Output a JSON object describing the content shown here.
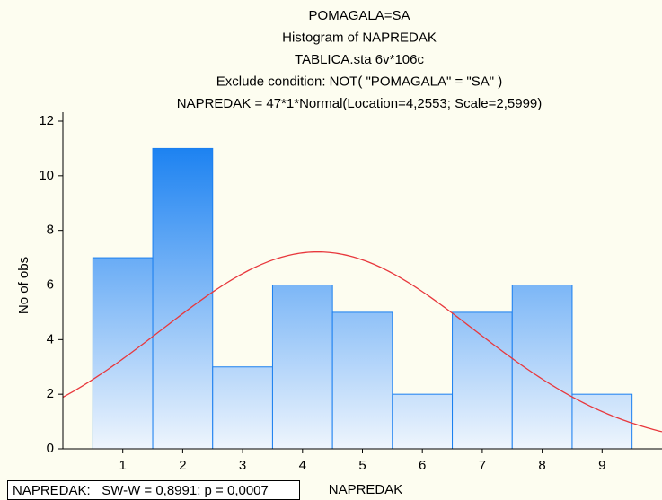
{
  "chart_data": {
    "type": "histogram",
    "title": [
      "POMAGALA=SA",
      "Histogram of NAPREDAK",
      "TABLICA.sta 6v*106c",
      "Exclude condition: NOT( \"POMAGALA\" = \"SA\" )",
      "NAPREDAK = 47*1*Normal(Location=4,2553; Scale=2,5999)"
    ],
    "xlabel": "NAPREDAK",
    "ylabel": "No of obs",
    "bins": [
      0.5,
      1.5,
      2.5,
      3.5,
      4.5,
      5.5,
      6.5,
      7.5,
      8.5,
      9.5
    ],
    "values": [
      7,
      11,
      3,
      6,
      5,
      2,
      5,
      6,
      2
    ],
    "color": "#1a7ff0",
    "curve_color": "#e8383d",
    "fit": {
      "n": 47,
      "location": 4.2553,
      "scale": 2.5999
    },
    "xlim": [
      0,
      10
    ],
    "xticks": [
      1,
      2,
      3,
      4,
      5,
      6,
      7,
      8,
      9
    ],
    "ylim": [
      0,
      12
    ],
    "yticks": [
      0,
      2,
      4,
      6,
      8,
      10,
      12
    ],
    "footnote": "NAPREDAK:   SW-W = 0,8991; p = 0,0007"
  }
}
